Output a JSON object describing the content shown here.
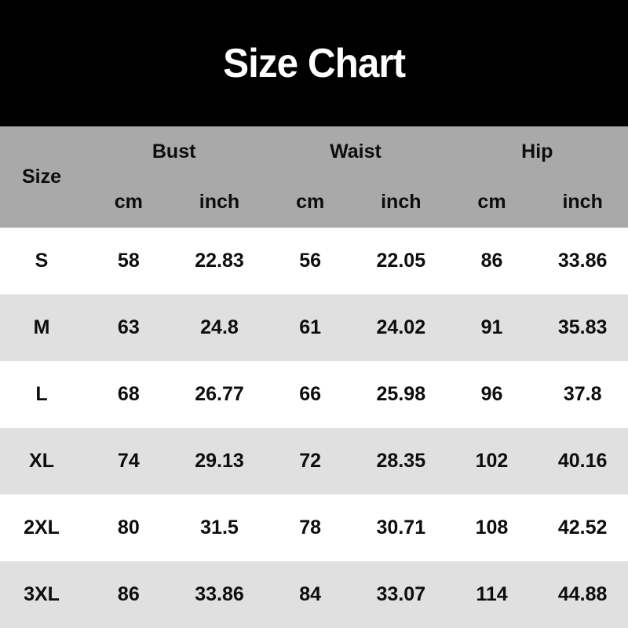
{
  "banner": {
    "title": "Size Chart"
  },
  "chart_data": {
    "type": "table",
    "title": "Size Chart",
    "header": {
      "size_label": "Size",
      "groups": [
        {
          "label": "Bust",
          "units": [
            "cm",
            "inch"
          ]
        },
        {
          "label": "Waist",
          "units": [
            "cm",
            "inch"
          ]
        },
        {
          "label": "Hip",
          "units": [
            "cm",
            "inch"
          ]
        }
      ]
    },
    "columns": [
      "Size",
      "Bust cm",
      "Bust inch",
      "Waist cm",
      "Waist inch",
      "Hip cm",
      "Hip inch"
    ],
    "rows": [
      {
        "size": "S",
        "values": [
          "58",
          "22.83",
          "56",
          "22.05",
          "86",
          "33.86"
        ]
      },
      {
        "size": "M",
        "values": [
          "63",
          "24.8",
          "61",
          "24.02",
          "91",
          "35.83"
        ]
      },
      {
        "size": "L",
        "values": [
          "68",
          "26.77",
          "66",
          "25.98",
          "96",
          "37.8"
        ]
      },
      {
        "size": "XL",
        "values": [
          "74",
          "29.13",
          "72",
          "28.35",
          "102",
          "40.16"
        ]
      },
      {
        "size": "2XL",
        "values": [
          "80",
          "31.5",
          "78",
          "30.71",
          "108",
          "42.52"
        ]
      },
      {
        "size": "3XL",
        "values": [
          "86",
          "33.86",
          "84",
          "33.07",
          "114",
          "44.88"
        ]
      }
    ]
  },
  "colors": {
    "banner_bg": "#000000",
    "banner_text": "#ffffff",
    "header_bg": "#a9a9a9",
    "row_bg": "#ffffff",
    "row_alt_bg": "#e0e0e0",
    "text": "#0d0d0d"
  }
}
